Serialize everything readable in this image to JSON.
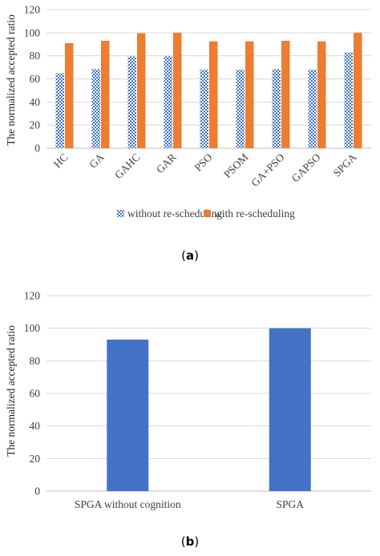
{
  "colors": {
    "without": "#4472c4",
    "with": "#ed7d31",
    "grid": "#d9d9d9",
    "axis": "#bfbfbf"
  },
  "chart_data": [
    {
      "type": "bar",
      "caption_letter": "a",
      "ylabel": "The normalized accepted ratio",
      "ylim": [
        0,
        120
      ],
      "yticks": [
        0,
        20,
        40,
        60,
        80,
        100,
        120
      ],
      "grid": true,
      "legend_position": "bottom",
      "categories": [
        "HC",
        "GA",
        "GAHC",
        "GAR",
        "PSO",
        "PSOM",
        "GA+PSO",
        "GAPSO",
        "SPGA"
      ],
      "series": [
        {
          "name": "without re-scheduling",
          "pattern": "checkered",
          "values": [
            65,
            68.5,
            79.5,
            79.5,
            68,
            68,
            68.5,
            68,
            83
          ]
        },
        {
          "name": "with re-scheduling",
          "pattern": "solid",
          "values": [
            91,
            93,
            99.5,
            100,
            92.5,
            92.5,
            93,
            92.5,
            100
          ]
        }
      ]
    },
    {
      "type": "bar",
      "caption_letter": "b",
      "ylabel": "The normalized accepted ratio",
      "ylim": [
        0,
        120
      ],
      "yticks": [
        0,
        20,
        40,
        60,
        80,
        100,
        120
      ],
      "grid": true,
      "categories": [
        "SPGA without cognition",
        "SPGA"
      ],
      "values": [
        93,
        100
      ]
    }
  ]
}
